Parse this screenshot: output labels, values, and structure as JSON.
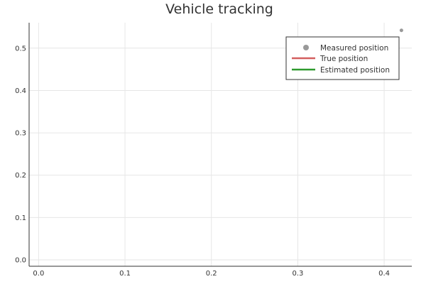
{
  "chart_data": {
    "type": "scatter",
    "title": "Vehicle tracking",
    "xlabel": "",
    "ylabel": "",
    "xlim": [
      -0.011,
      0.432
    ],
    "ylim": [
      -0.015,
      0.56
    ],
    "xticks": [
      "0.0",
      "0.1",
      "0.2",
      "0.3",
      "0.4"
    ],
    "yticks": [
      "0.0",
      "0.1",
      "0.2",
      "0.3",
      "0.4",
      "0.5"
    ],
    "grid": true,
    "legend_position": "top-right",
    "series": [
      {
        "name": "Measured position",
        "kind": "scatter",
        "color": "#999999",
        "points": [
          {
            "x": 0.42,
            "y": 0.542
          }
        ]
      },
      {
        "name": "True position",
        "kind": "line",
        "color": "#d35f5f",
        "points": []
      },
      {
        "name": "Estimated position",
        "kind": "line",
        "color": "#2e9a2e",
        "points": []
      }
    ]
  }
}
